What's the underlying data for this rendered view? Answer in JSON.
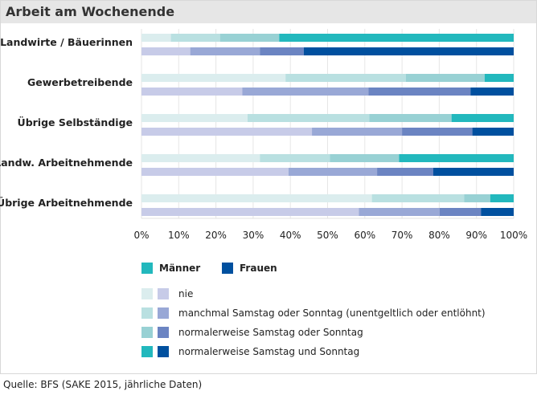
{
  "title": "Arbeit am Wochenende",
  "source": "Quelle: BFS (SAKE 2015, jährliche Daten)",
  "colors": {
    "men": [
      "#dbedee",
      "#b9e0e1",
      "#98d1d4",
      "#22b8bd"
    ],
    "women": [
      "#c7cbe8",
      "#99a8d6",
      "#6b84c2",
      "#00509f"
    ]
  },
  "chart_data": {
    "type": "bar",
    "orientation": "horizontal",
    "stacked": true,
    "percent": true,
    "title": "Arbeit am Wochenende",
    "categories": [
      "Landwirte / Bäuerinnen",
      "Gewerbetreibende",
      "Übrige Selbständige",
      "Landw. Arbeitnehmende",
      "Übrige Arbeitnehmende"
    ],
    "genders": [
      "Männer",
      "Frauen"
    ],
    "levels": [
      "nie",
      "manchmal Samstag oder Sonntag (unentgeltlich oder entlöhnt)",
      "normalerweise Samstag oder Sonntag",
      "normalerweise Samstag und Sonntag"
    ],
    "series": [
      {
        "category": "Landwirte / Bäuerinnen",
        "men": [
          7.9,
          13.2,
          15.9,
          63.0
        ],
        "women": [
          13.1,
          18.7,
          11.8,
          56.4
        ]
      },
      {
        "category": "Gewerbetreibende",
        "men": [
          38.7,
          32.3,
          21.2,
          7.8
        ],
        "women": [
          27.1,
          33.9,
          27.4,
          11.6
        ]
      },
      {
        "category": "Übrige Selbständige",
        "men": [
          28.5,
          32.7,
          22.1,
          16.7
        ],
        "women": [
          45.8,
          24.2,
          18.9,
          11.1
        ]
      },
      {
        "category": "Landw. Arbeitnehmende",
        "men": [
          31.8,
          18.8,
          18.6,
          30.8
        ],
        "women": [
          39.5,
          23.8,
          15.1,
          21.6
        ]
      },
      {
        "category": "Übrige Arbeitnehmende",
        "men": [
          61.9,
          24.8,
          7.0,
          6.3
        ],
        "women": [
          58.4,
          21.7,
          11.1,
          8.8
        ]
      }
    ],
    "xticks": [
      "0%",
      "10%",
      "20%",
      "30%",
      "40%",
      "50%",
      "60%",
      "70%",
      "80%",
      "90%",
      "100%"
    ],
    "xlim": [
      0,
      100
    ],
    "grid": true,
    "legend": "bottom"
  }
}
